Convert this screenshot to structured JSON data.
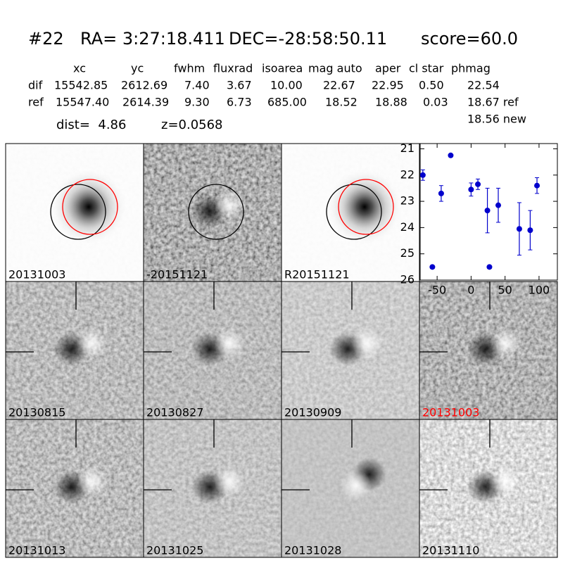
{
  "header": {
    "id": "#22",
    "ra": "RA= 3:27:18.411",
    "dec": "DEC=-28:58:50.11",
    "score": "score=60.0"
  },
  "table": {
    "columns": [
      "xc",
      "yc",
      "fwhm",
      "fluxrad",
      "isoarea",
      "mag auto",
      "aper",
      "cl star",
      "phmag"
    ],
    "rows": [
      {
        "label": "dif",
        "cells": [
          "15542.85",
          "2612.69",
          "7.40",
          "3.67",
          "10.00",
          "22.67",
          "22.95",
          "0.50",
          "22.54"
        ]
      },
      {
        "label": "ref",
        "cells": [
          "15547.40",
          "2614.39",
          "9.30",
          "6.73",
          "685.00",
          "18.52",
          "18.88",
          "0.03",
          "18.67 ref"
        ]
      }
    ],
    "note": "18.56 new"
  },
  "dist": "dist=  4.86",
  "z": "z=0.0568",
  "stamps": [
    {
      "label": "20131003",
      "label_color": "#000000"
    },
    {
      "label": "-20151121",
      "label_color": "#000000"
    },
    {
      "label": "R20151121",
      "label_color": "#000000"
    },
    {
      "label": "20130815",
      "label_color": "#000000"
    },
    {
      "label": "20130827",
      "label_color": "#000000"
    },
    {
      "label": "20130909",
      "label_color": "#000000"
    },
    {
      "label": "20131003",
      "label_color": "#ff0000"
    },
    {
      "label": "20131013",
      "label_color": "#000000"
    },
    {
      "label": "20131025",
      "label_color": "#000000"
    },
    {
      "label": "20131028",
      "label_color": "#000000"
    },
    {
      "label": "20131110",
      "label_color": "#000000"
    }
  ],
  "chart_data": {
    "type": "scatter",
    "color": "#0000cc",
    "x": [
      -71,
      -57,
      -44,
      -30,
      0,
      10,
      24,
      27,
      40,
      71,
      87,
      97
    ],
    "values": [
      22.0,
      25.5,
      22.7,
      21.25,
      22.55,
      22.35,
      23.35,
      25.5,
      23.15,
      24.05,
      24.1,
      22.4
    ],
    "errors": [
      0.2,
      0.05,
      0.3,
      0.05,
      0.25,
      0.2,
      0.85,
      0.05,
      0.65,
      1.0,
      0.75,
      0.3
    ],
    "xlim": [
      -75,
      127
    ],
    "ylim": [
      26,
      20.8
    ],
    "xticks": [
      -50,
      0,
      50,
      100
    ],
    "yticks": [
      21,
      22,
      23,
      24,
      25,
      26
    ]
  }
}
